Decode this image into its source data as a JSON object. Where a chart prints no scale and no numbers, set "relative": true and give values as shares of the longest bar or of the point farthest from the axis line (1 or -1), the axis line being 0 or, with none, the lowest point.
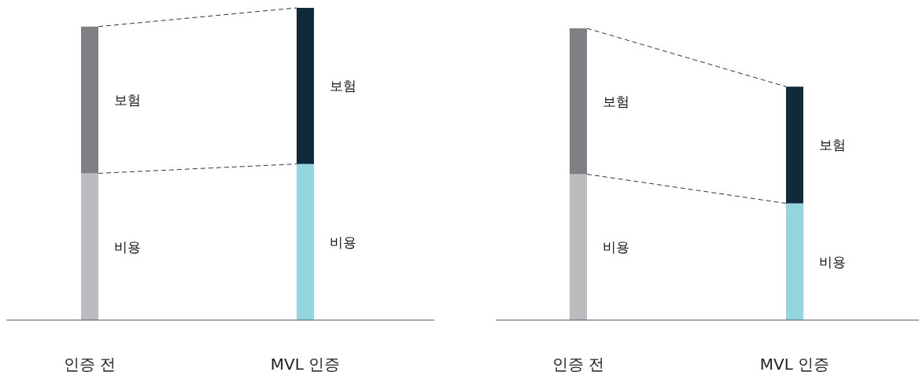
{
  "chart_data": [
    {
      "type": "bar",
      "stacked": true,
      "relative": true,
      "categories": [
        "인증 전",
        "MVL 인증"
      ],
      "series": [
        {
          "name": "비용",
          "colors": [
            "#bcbcc0",
            "#93d6e0"
          ],
          "values": [
            0.47,
            0.5
          ]
        },
        {
          "name": "보험",
          "colors": [
            "#808084",
            "#0f2b3b"
          ],
          "values": [
            0.47,
            0.5
          ]
        }
      ]
    },
    {
      "type": "bar",
      "stacked": true,
      "relative": true,
      "categories": [
        "인증 전",
        "MVL 인증"
      ],
      "series": [
        {
          "name": "비용",
          "colors": [
            "#bcbcc0",
            "#93d6e0"
          ],
          "values": [
            0.5,
            0.4
          ]
        },
        {
          "name": "보험",
          "colors": [
            "#808084",
            "#0f2b3b"
          ],
          "values": [
            0.5,
            0.4
          ]
        }
      ]
    }
  ]
}
